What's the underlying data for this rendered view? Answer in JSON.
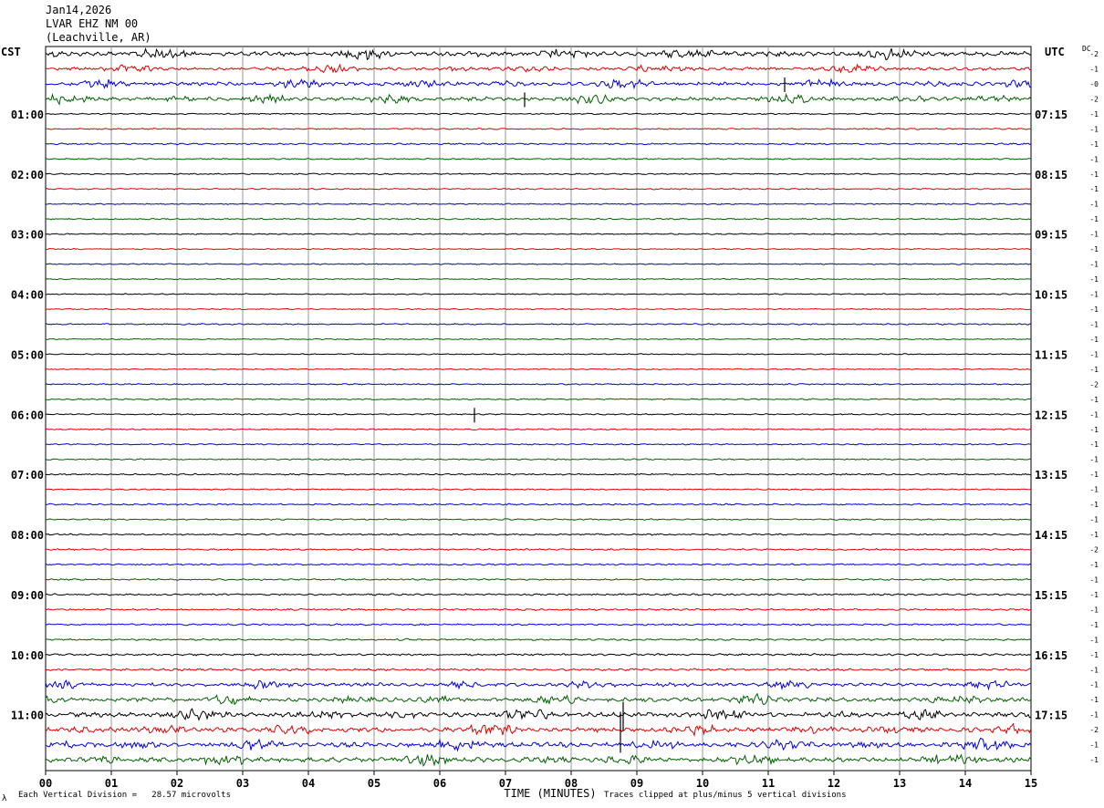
{
  "header": {
    "date": "Jan14,2026",
    "station": "LVAR EHZ NM 00",
    "location": "(Leachville, AR)"
  },
  "labels": {
    "left_tz": "CST",
    "right_tz": "UTC",
    "dc": "DC"
  },
  "footer": {
    "scale_note": "Each Vertical Division =   28.57 microvolts",
    "clip_note": "Traces clipped at plus/minus 5 vertical divisions",
    "mark": "λ"
  },
  "chart_data": {
    "type": "line",
    "xlabel": "TIME (MINUTES)",
    "x_ticks": [
      "00",
      "01",
      "02",
      "03",
      "04",
      "05",
      "06",
      "07",
      "08",
      "09",
      "10",
      "11",
      "12",
      "13",
      "14",
      "15"
    ],
    "xlim": [
      0,
      15
    ],
    "grid": true,
    "colors": [
      "#000000",
      "#e00000",
      "#0000e0",
      "#006000"
    ],
    "row_count": 48,
    "left_hour_labels": [
      "01:00",
      "02:00",
      "03:00",
      "04:00",
      "05:00",
      "06:00",
      "07:00",
      "08:00",
      "09:00",
      "10:00",
      "11:00"
    ],
    "right_hour_labels": [
      "07:15",
      "08:15",
      "09:15",
      "10:15",
      "11:15",
      "12:15",
      "13:15",
      "14:15",
      "15:15",
      "16:15",
      "17:15"
    ],
    "dc_offsets": [
      "-2",
      "-1",
      "-0",
      "-2",
      "-1",
      "-1",
      "-1",
      "-1",
      "-1",
      "-1",
      "-1",
      "-1",
      "-1",
      "-1",
      "-1",
      "-1",
      "-1",
      "-1",
      "-1",
      "-1",
      "-1",
      "-1",
      "-2",
      "-1",
      "-1",
      "-1",
      "-1",
      "-1",
      "-1",
      "-1",
      "-1",
      "-1",
      "-1",
      "-2",
      "-1",
      "-1",
      "-1",
      "-1",
      "-1",
      "-1",
      "-1",
      "-1",
      "-1",
      "-1",
      "-1",
      "-2",
      "-1",
      "-1"
    ],
    "activity_levels": [
      1.0,
      0.7,
      0.8,
      0.8,
      0.3,
      0.3,
      0.35,
      0.3,
      0.3,
      0.3,
      0.3,
      0.3,
      0.25,
      0.25,
      0.25,
      0.25,
      0.25,
      0.25,
      0.3,
      0.25,
      0.25,
      0.25,
      0.3,
      0.3,
      0.3,
      0.3,
      0.3,
      0.3,
      0.35,
      0.3,
      0.35,
      0.3,
      0.35,
      0.35,
      0.35,
      0.35,
      0.4,
      0.4,
      0.4,
      0.4,
      0.45,
      0.5,
      0.7,
      0.9,
      1.0,
      1.0,
      1.0,
      1.0
    ]
  }
}
